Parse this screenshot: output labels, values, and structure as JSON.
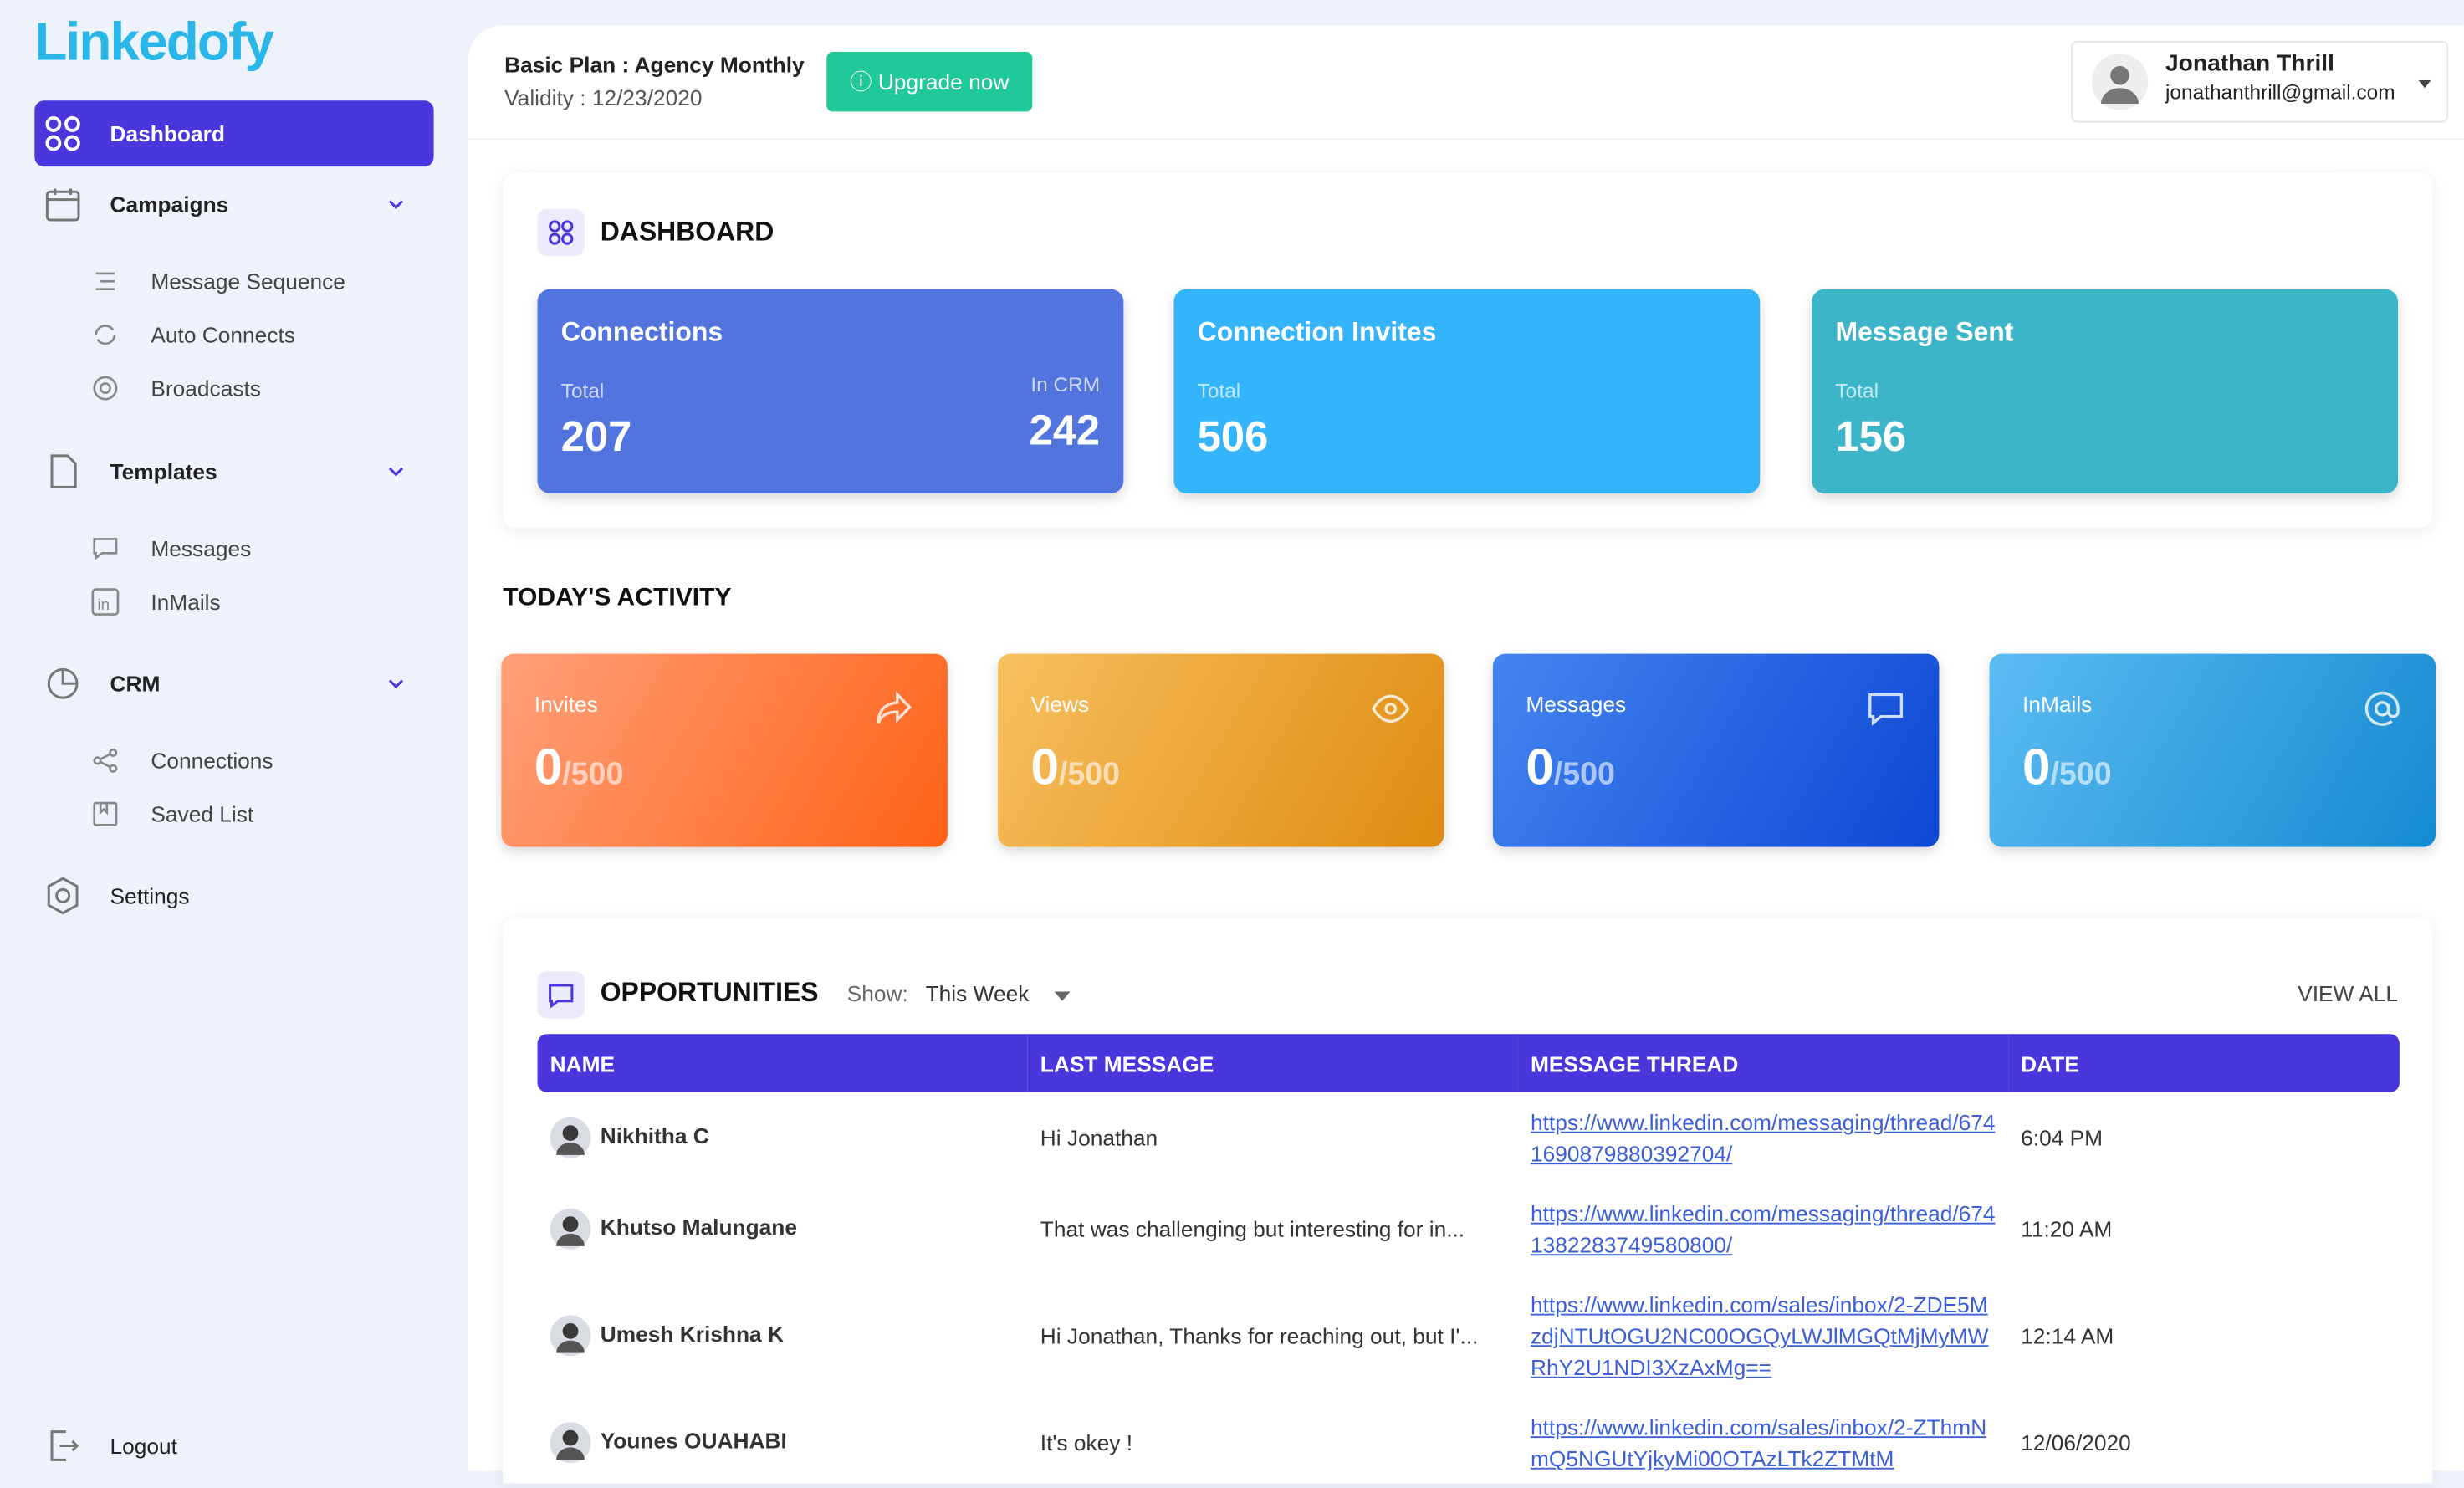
{
  "brand": "Linkedofy",
  "nav": {
    "dashboard": "Dashboard",
    "campaigns": "Campaigns",
    "campaign_items": [
      "Message Sequence",
      "Auto Connects",
      "Broadcasts"
    ],
    "templates": "Templates",
    "template_items": [
      "Messages",
      "InMails"
    ],
    "crm": "CRM",
    "crm_items": [
      "Connections",
      "Saved List"
    ],
    "settings": "Settings",
    "logout": "Logout"
  },
  "header": {
    "plan": "Basic Plan : Agency Monthly",
    "validity": "Validity : 12/23/2020",
    "upgrade": "Upgrade now",
    "user_name": "Jonathan Thrill",
    "user_email": "jonathanthrill@gmail.com"
  },
  "dashboard": {
    "title": "DASHBOARD",
    "cards": [
      {
        "title": "Connections",
        "total_label": "Total",
        "total": "207",
        "crm_label": "In CRM",
        "crm": "242"
      },
      {
        "title": "Connection Invites",
        "total_label": "Total",
        "total": "506"
      },
      {
        "title": "Message Sent",
        "total_label": "Total",
        "total": "156"
      }
    ]
  },
  "activity": {
    "title": "TODAY'S ACTIVITY",
    "cards": [
      {
        "title": "Invites",
        "count": "0",
        "limit": "/500"
      },
      {
        "title": "Views",
        "count": "0",
        "limit": "/500"
      },
      {
        "title": "Messages",
        "count": "0",
        "limit": "/500"
      },
      {
        "title": "InMails",
        "count": "0",
        "limit": "/500"
      }
    ]
  },
  "opportunities": {
    "title": "OPPORTUNITIES",
    "show_label": "Show:",
    "show_value": "This Week",
    "view_all": "VIEW ALL",
    "columns": [
      "NAME",
      "LAST MESSAGE",
      "MESSAGE THREAD",
      "DATE"
    ],
    "rows": [
      [
        "Nikhitha C",
        "Hi Jonathan",
        "https://www.linkedin.com/messaging/thread/6741690879880392704/",
        "6:04 PM"
      ],
      [
        "Khutso Malungane",
        "That was challenging but interesting for in...",
        "https://www.linkedin.com/messaging/thread/6741382283749580800/",
        "11:20 AM"
      ],
      [
        "Umesh Krishna K",
        "Hi Jonathan, Thanks for reaching out, but I'...",
        "https://www.linkedin.com/sales/inbox/2-ZDE5MzdjNTUtOGU2NC00OGQyLWJlMGQtMjMyMWRhY2U1NDI3XzAxMg==",
        "12:14 AM"
      ],
      [
        "Younes OUAHABI",
        "It's okey !",
        "https://www.linkedin.com/sales/inbox/2-ZThmNmQ5NGUtYjkyMi00OTAzLTk2ZTMtM",
        "12/06/2020"
      ]
    ]
  }
}
